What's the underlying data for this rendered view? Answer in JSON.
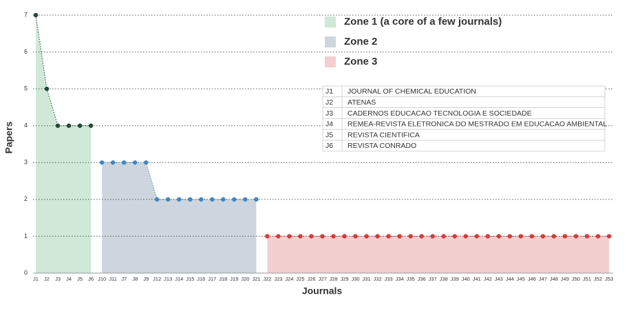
{
  "chart_data": {
    "type": "area",
    "xlabel": "Journals",
    "ylabel": "Papers",
    "categories": [
      "J1",
      "J2",
      "J3",
      "J4",
      "J5",
      "J6",
      "J10",
      "J11",
      "J7",
      "J8",
      "J9",
      "J12",
      "J13",
      "J14",
      "J15",
      "J16",
      "J17",
      "J18",
      "J19",
      "J20",
      "J21",
      "J22",
      "J23",
      "J24",
      "J25",
      "J26",
      "J27",
      "J28",
      "J29",
      "J30",
      "J31",
      "J32",
      "J33",
      "J34",
      "J35",
      "J36",
      "J37",
      "J38",
      "J39",
      "J40",
      "J41",
      "J42",
      "J43",
      "J44",
      "J45",
      "J46",
      "J47",
      "J48",
      "J49",
      "J50",
      "J51",
      "J52",
      "J53"
    ],
    "series": [
      {
        "name": "Zone 1 (a core of a few journals)",
        "color": "#cfe8d8",
        "marker_color": "#1e4a34",
        "values": [
          7,
          5,
          4,
          4,
          4,
          4,
          null,
          null,
          null,
          null,
          null,
          null,
          null,
          null,
          null,
          null,
          null,
          null,
          null,
          null,
          null,
          null,
          null,
          null,
          null,
          null,
          null,
          null,
          null,
          null,
          null,
          null,
          null,
          null,
          null,
          null,
          null,
          null,
          null,
          null,
          null,
          null,
          null,
          null,
          null,
          null,
          null,
          null,
          null,
          null,
          null,
          null,
          null
        ]
      },
      {
        "name": "Zone 2",
        "color": "#cdd6de",
        "marker_color": "#3f86c4",
        "values": [
          null,
          null,
          null,
          null,
          null,
          null,
          3,
          3,
          3,
          3,
          3,
          2,
          2,
          2,
          2,
          2,
          2,
          2,
          2,
          2,
          2,
          null,
          null,
          null,
          null,
          null,
          null,
          null,
          null,
          null,
          null,
          null,
          null,
          null,
          null,
          null,
          null,
          null,
          null,
          null,
          null,
          null,
          null,
          null,
          null,
          null,
          null,
          null,
          null,
          null,
          null,
          null,
          null
        ]
      },
      {
        "name": "Zone 3",
        "color": "#f3cfcf",
        "marker_color": "#d23c3c",
        "values": [
          null,
          null,
          null,
          null,
          null,
          null,
          null,
          null,
          null,
          null,
          null,
          null,
          null,
          null,
          null,
          null,
          null,
          null,
          null,
          null,
          null,
          1,
          1,
          1,
          1,
          1,
          1,
          1,
          1,
          1,
          1,
          1,
          1,
          1,
          1,
          1,
          1,
          1,
          1,
          1,
          1,
          1,
          1,
          1,
          1,
          1,
          1,
          1,
          1,
          1,
          1,
          1,
          1
        ]
      }
    ],
    "ylim": [
      0,
      7
    ],
    "yticks": [
      0,
      1,
      2,
      3,
      4,
      5,
      6,
      7
    ],
    "grid": true,
    "table_rows": [
      [
        "J1",
        "JOURNAL OF CHEMICAL EDUCATION"
      ],
      [
        "J2",
        "ATENAS"
      ],
      [
        "J3",
        "CADERNOS EDUCACAO TECNOLOGIA E SOCIEDADE"
      ],
      [
        "J4",
        "REMEA-REVISTA ELETRONICA DO MESTRADO EM EDUCACAO AMBIENTAL"
      ],
      [
        "J5",
        "REVISTA CIENTIFICA"
      ],
      [
        "J6",
        "REVISTA CONRADO"
      ]
    ]
  }
}
